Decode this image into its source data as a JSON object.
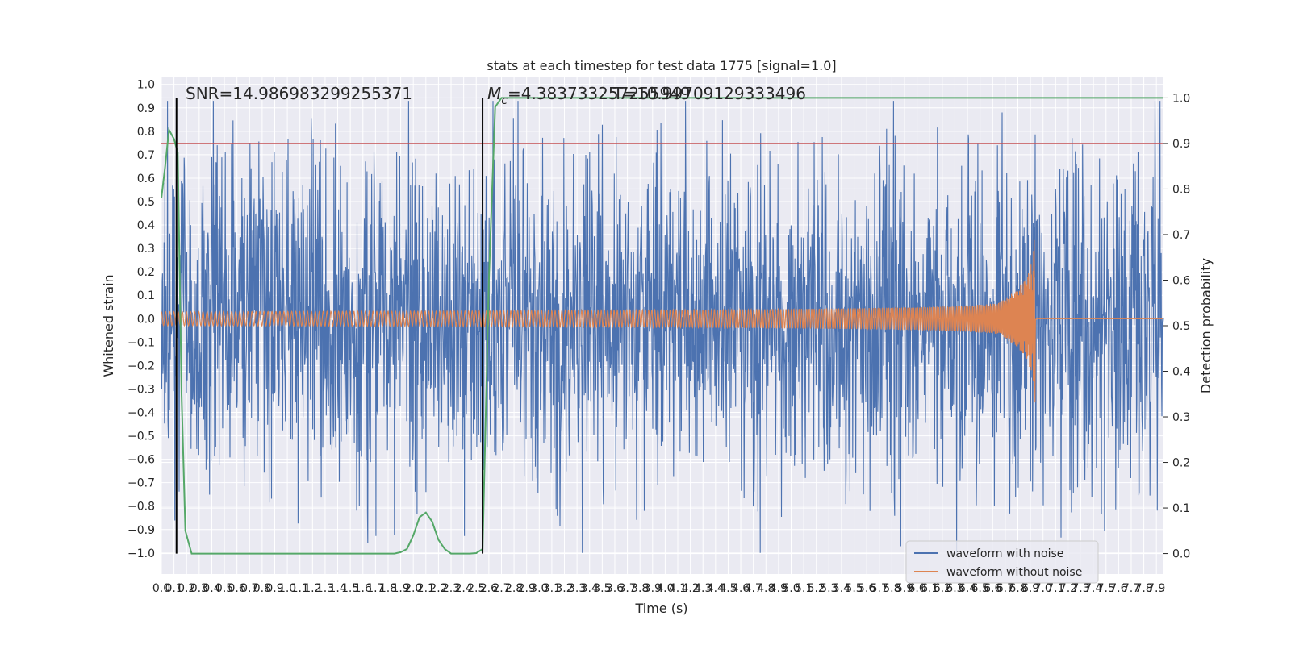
{
  "chart_data": {
    "type": "line",
    "title": "stats at each timestep for test data 1775 [signal=1.0]",
    "xlabel": "Time (s)",
    "ylabel": "Whitened strain",
    "y2label": "Detection probability",
    "xlim": [
      0.0,
      7.95
    ],
    "ylim": [
      -1.09,
      1.03
    ],
    "y2lim": [
      -0.045,
      1.045
    ],
    "x_ticks": [
      "0.0",
      "0.1",
      "0.2",
      "0.3",
      "0.4",
      "0.5",
      "0.6",
      "0.7",
      "0.8",
      "0.9",
      "1.0",
      "1.1",
      "1.2",
      "1.3",
      "1.4",
      "1.5",
      "1.6",
      "1.7",
      "1.8",
      "1.9",
      "2.0",
      "2.1",
      "2.2",
      "2.3",
      "2.4",
      "2.5",
      "2.6",
      "2.7",
      "2.8",
      "2.9",
      "3.0",
      "3.1",
      "3.2",
      "3.3",
      "3.4",
      "3.5",
      "3.6",
      "3.7",
      "3.8",
      "3.9",
      "4.0",
      "4.1",
      "4.2",
      "4.3",
      "4.4",
      "4.5",
      "4.6",
      "4.7",
      "4.8",
      "4.9",
      "5.0",
      "5.1",
      "5.2",
      "5.3",
      "5.4",
      "5.5",
      "5.6",
      "5.7",
      "5.8",
      "5.9",
      "6.0",
      "6.1",
      "6.2",
      "6.3",
      "6.4",
      "6.5",
      "6.6",
      "6.7",
      "6.8",
      "6.9",
      "7.0",
      "7.1",
      "7.2",
      "7.3",
      "7.4",
      "7.5",
      "7.6",
      "7.7",
      "7.8",
      "7.9"
    ],
    "y_ticks": [
      "1.0",
      "0.9",
      "0.8",
      "0.7",
      "0.6",
      "0.5",
      "0.4",
      "0.3",
      "0.2",
      "0.1",
      "0.0",
      "-0.1",
      "-0.2",
      "-0.3",
      "-0.4",
      "-0.5",
      "-0.6",
      "-0.7",
      "-0.8",
      "-0.9",
      "-1.0"
    ],
    "y2_ticks": [
      "1.0",
      "0.9",
      "0.8",
      "0.7",
      "0.6",
      "0.5",
      "0.4",
      "0.3",
      "0.2",
      "0.1",
      "0.0"
    ],
    "annotations": {
      "snr": "SNR=14.986983299255371",
      "mc": "M_c=4.383733257255949",
      "mc_prefix": "M",
      "mc_sub": "c",
      "mc_value": "=4.383733257255949",
      "t": "T=10.99709129333496"
    },
    "vlines_x": [
      0.12,
      2.55
    ],
    "threshold_y2": 0.9,
    "series": [
      {
        "name": "waveform with noise",
        "color": "#4c72b0",
        "style": "noise",
        "noise_envelope": 0.55,
        "peak_max": 0.93,
        "peak_min": -1.0
      },
      {
        "name": "waveform without noise",
        "color": "#dd8452",
        "style": "chirp",
        "start_amp": 0.03,
        "end_time": 6.94,
        "peak_amp": 0.37,
        "end_amp": 0.005
      },
      {
        "name": "detection probability",
        "color": "#55a868",
        "axis": "y2",
        "x": [
          0.0,
          0.03,
          0.06,
          0.1,
          0.13,
          0.16,
          0.19,
          0.24,
          0.3,
          0.5,
          1.0,
          1.5,
          1.85,
          1.9,
          1.95,
          2.0,
          2.05,
          2.1,
          2.15,
          2.2,
          2.25,
          2.3,
          2.4,
          2.45,
          2.5,
          2.55,
          2.6,
          2.65,
          2.7,
          2.8,
          3.0,
          4.0,
          5.0,
          6.0,
          7.0,
          7.95
        ],
        "y": [
          0.78,
          0.85,
          0.93,
          0.91,
          0.88,
          0.35,
          0.05,
          0.0,
          0.0,
          0.0,
          0.0,
          0.0,
          0.0,
          0.003,
          0.01,
          0.04,
          0.08,
          0.09,
          0.07,
          0.03,
          0.01,
          0.0,
          0.0,
          0.0,
          0.001,
          0.01,
          0.6,
          0.98,
          1.0,
          1.0,
          1.0,
          1.0,
          1.0,
          1.0,
          1.0,
          1.0
        ]
      }
    ],
    "threshold_color": "#c44e52",
    "vline_color": "#000000",
    "legend": {
      "placement": "lower-right",
      "entries": [
        "waveform with noise",
        "waveform without noise"
      ]
    },
    "grid": true
  }
}
